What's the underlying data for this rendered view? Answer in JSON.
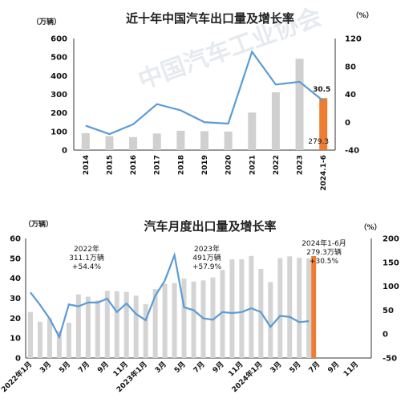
{
  "chart_data": [
    {
      "type": "bar",
      "title": "近十年中国汽车出口量及增长率",
      "left_unit": "（万辆）",
      "right_unit": "（%）",
      "categories": [
        "2014",
        "2015",
        "2016",
        "2017",
        "2018",
        "2019",
        "2020",
        "2021",
        "2022",
        "2023",
        "2024.1-6"
      ],
      "series": [
        {
          "type": "bar",
          "axis": "left",
          "values": [
            91,
            75,
            70,
            89,
            104,
            102,
            100,
            202,
            311,
            491,
            279.3
          ]
        },
        {
          "type": "line",
          "axis": "right",
          "color": "#5b9bd5",
          "values": [
            -5,
            -17,
            -3,
            26,
            17,
            0,
            -2,
            101,
            54,
            58,
            30.5
          ]
        }
      ],
      "left_ylim": [
        0,
        600
      ],
      "left_ticks": [
        "0",
        "100",
        "200",
        "300",
        "400",
        "500",
        "600"
      ],
      "right_ylim": [
        -40,
        120
      ],
      "right_ticks": [
        "-40",
        "0",
        "40",
        "80",
        "120"
      ],
      "highlight_color": "#ed7d31",
      "bar_color": "#d0d0d0",
      "value_labels": {
        "line_last": "30.5",
        "bar_last": "279.3"
      },
      "watermark": "中国汽车工业协会"
    },
    {
      "type": "bar",
      "title": "汽车月度出口量及增长率",
      "left_unit": "（万辆）",
      "right_unit": "（%）",
      "x_labels": [
        "2022年1月",
        "3月",
        "5月",
        "7月",
        "9月",
        "11月",
        "2023年1月",
        "3月",
        "5月",
        "7月",
        "9月",
        "11月",
        "2024年1月",
        "3月",
        "5月",
        "7月",
        "9月",
        "11月"
      ],
      "series": [
        {
          "type": "bar",
          "axis": "left",
          "values": [
            23.1,
            18.2,
            20,
            13.4,
            17.7,
            31.9,
            30.8,
            28.9,
            33.7,
            33.5,
            33.2,
            31.3,
            27,
            34.6,
            37.2,
            37.6,
            39.8,
            38.3,
            38.9,
            40.4,
            44.2,
            49.5,
            49.5,
            51.2,
            44.7,
            38.1,
            50.1,
            51,
            50.3,
            50
          ]
        },
        {
          "type": "line",
          "axis": "right",
          "color": "#5b9bd5",
          "values": [
            87,
            61,
            32,
            -6,
            62,
            58,
            66,
            66,
            74,
            46,
            64,
            42,
            29,
            80,
            112,
            165,
            56,
            50,
            33,
            30,
            46,
            44,
            46,
            54,
            46,
            15,
            38,
            36,
            25,
            27
          ]
        }
      ],
      "highlight_value": 279.3,
      "left_ylim": [
        0,
        60
      ],
      "left_ticks": [
        "0",
        "10",
        "20",
        "30",
        "40",
        "50",
        "60"
      ],
      "right_ylim": [
        -50,
        200
      ],
      "right_ticks": [
        "-50",
        "0",
        "50",
        "100",
        "150",
        "200"
      ],
      "annotations": [
        {
          "lines": [
            "2022年",
            "311.1万辆",
            "+54.4%"
          ]
        },
        {
          "lines": [
            "2023年",
            "491万辆",
            "+57.9%"
          ]
        },
        {
          "lines": [
            "2024年1-6月",
            "279.3万辆",
            "+30.5%"
          ]
        }
      ]
    }
  ]
}
